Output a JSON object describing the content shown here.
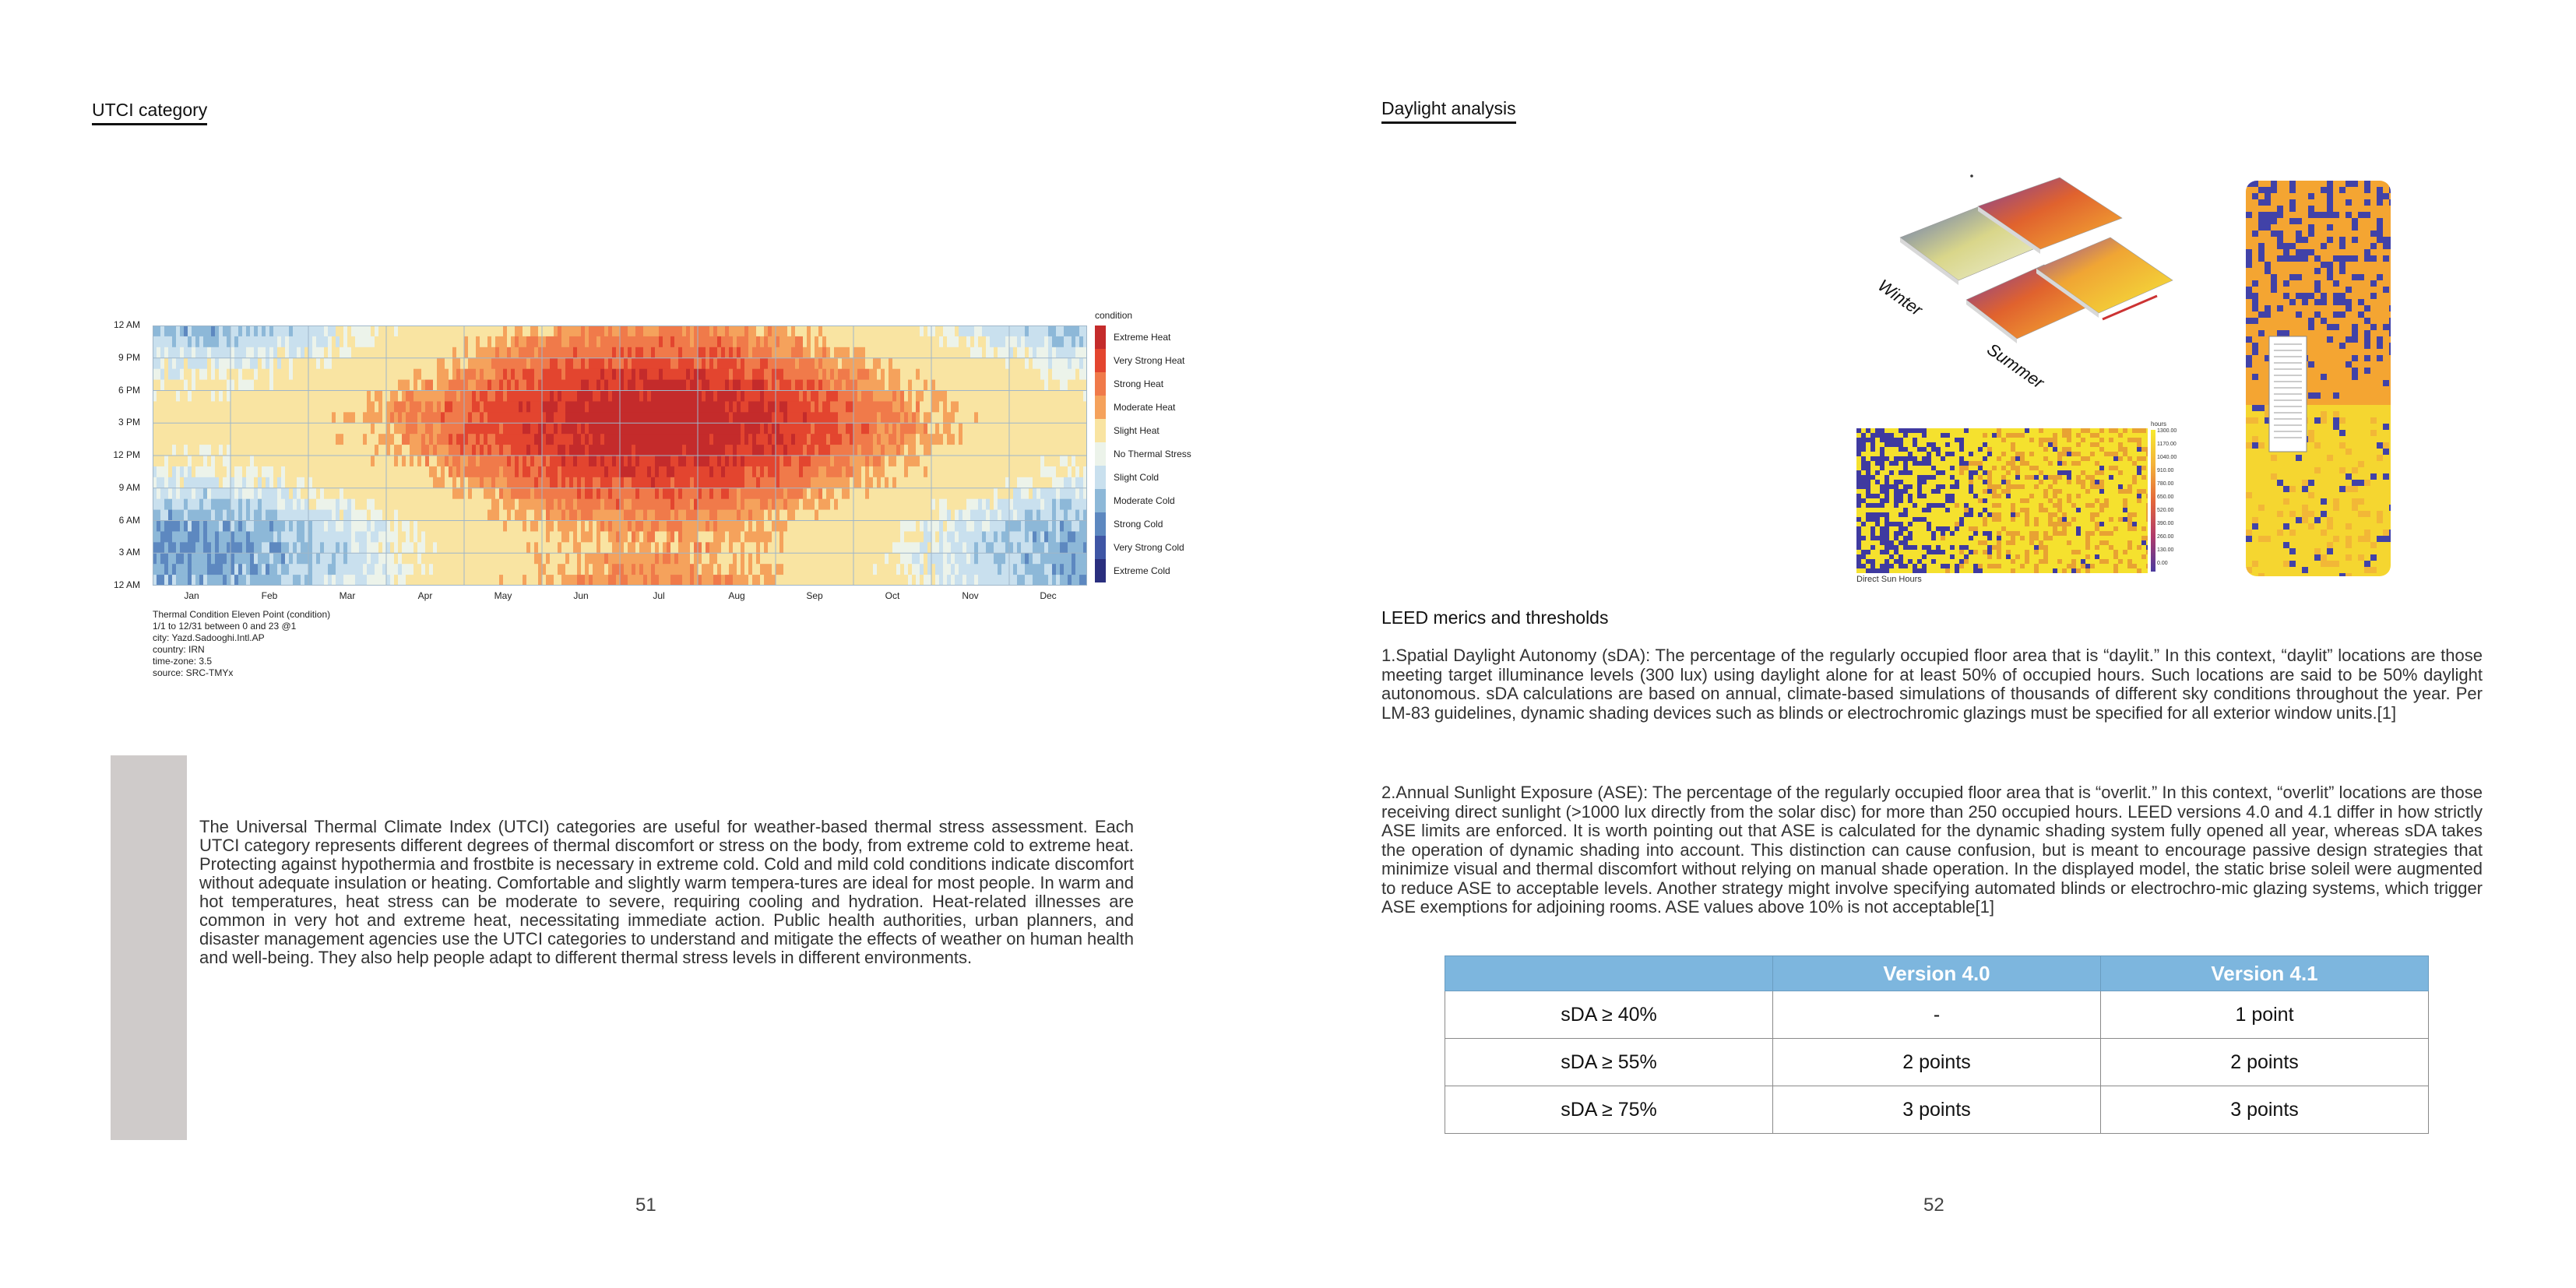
{
  "left_page": {
    "title": "UTCI category",
    "page_number": "51",
    "body": "The Universal Thermal Climate Index (UTCI) categories are useful for weather-based thermal stress assessment. Each UTCI category represents different degrees of thermal discomfort or stress on the body, from extreme cold to extreme heat. Protecting against hypothermia and frostbite is necessary in extreme cold. Cold and mild cold conditions indicate discomfort without adequate insulation or heating. Comfortable and slightly warm tempera-tures are ideal for most people. In warm and hot temperatures, heat stress can be moderate to severe, requiring cooling and hydration. Heat-related illnesses are common in very hot and extreme heat, necessitating immediate action. Public health authorities, urban planners, and disaster management agencies use the UTCI categories to understand and mitigate the effects of weather on human health and well-being. They also help people adapt to different thermal stress levels in different environments."
  },
  "chart_data": {
    "type": "heatmap",
    "title": "",
    "x_categories": [
      "Jan",
      "Feb",
      "Mar",
      "Apr",
      "May",
      "Jun",
      "Jul",
      "Aug",
      "Sep",
      "Oct",
      "Nov",
      "Dec"
    ],
    "y_ticks": [
      "12 AM",
      "9 PM",
      "6 PM",
      "3 PM",
      "12 PM",
      "9 AM",
      "6 AM",
      "3 AM",
      "12 AM"
    ],
    "legend_title": "condition",
    "legend": [
      {
        "label": "Extreme Heat",
        "color": "#c42b2b"
      },
      {
        "label": "Very Strong Heat",
        "color": "#e3452f"
      },
      {
        "label": "Strong Heat",
        "color": "#f07a4a"
      },
      {
        "label": "Moderate Heat",
        "color": "#f5a25c"
      },
      {
        "label": "Slight Heat",
        "color": "#f9e4a2"
      },
      {
        "label": "No Thermal Stress",
        "color": "#ecf3ea"
      },
      {
        "label": "Slight Cold",
        "color": "#c9e0ee"
      },
      {
        "label": "Moderate Cold",
        "color": "#8db8d8"
      },
      {
        "label": "Strong Cold",
        "color": "#5d88c0"
      },
      {
        "label": "Very Strong Cold",
        "color": "#3f56a5"
      },
      {
        "label": "Extreme Cold",
        "color": "#2a2f7e"
      }
    ],
    "legend_placement": "right",
    "grid": true,
    "metadata_lines": [
      "Thermal Condition Eleven Point (condition)",
      "1/1 to 12/31 between 0 and 23 @1",
      "city: Yazd.Sadooghi.Intl.AP",
      "country: IRN",
      "time-zone: 3.5",
      "source: SRC-TMYx"
    ]
  },
  "right_page": {
    "title": "Daylight analysis",
    "page_number": "52",
    "image_labels": {
      "winter": "Winter",
      "summer": "Summer",
      "direct_sun": "Direct Sun Hours",
      "hours": "hours"
    },
    "hours_scale": [
      "1300.00",
      "1170.00",
      "1040.00",
      "910.00",
      "780.00",
      "650.00",
      "520.00",
      "390.00",
      "260.00",
      "130.00",
      "0.00"
    ],
    "leed_heading": "LEED merics and thresholds",
    "para1": "1.Spatial Daylight Autonomy (sDA): The percentage of the regularly occupied floor area that is “daylit.” In this context, “daylit” locations are those meeting target illuminance levels (300 lux) using daylight alone for at least 50% of occupied hours. Such locations are said to be 50% daylight autonomous. sDA calculations are based on annual, climate-based simulations of thousands of different sky conditions throughout the year. Per LM-83 guidelines, dynamic shading devices such as blinds or electrochromic glazings must be specified for all exterior window units.[1]",
    "para2": "2.Annual Sunlight Exposure (ASE): The percentage of the regularly occupied floor area that is “overlit.” In this context, “overlit” locations are those receiving direct sunlight (>1000 lux directly from the solar disc) for more than 250 occupied hours. LEED versions 4.0 and 4.1 differ in how strictly ASE limits are enforced. It is worth pointing out that ASE is calculated for the dynamic shading system fully opened all year, whereas sDA takes the operation of dynamic shading into account. This distinction can cause confusion, but is meant to encourage passive design strategies that minimize visual and thermal discomfort without relying on manual shade operation. In the displayed model, the static brise soleil were augmented to reduce ASE to acceptable levels. Another strategy might involve specifying automated blinds or electrochro-mic glazing systems, which trigger ASE exemptions for adjoining rooms. ASE values above 10% is not acceptable[1]",
    "table": {
      "headers": [
        "",
        "Version 4.0",
        "Version 4.1"
      ],
      "rows": [
        [
          "sDA ≥ 40%",
          "-",
          "1 point"
        ],
        [
          "sDA ≥ 55%",
          "2 points",
          "2 points"
        ],
        [
          "sDA ≥ 75%",
          "3 points",
          "3 points"
        ]
      ]
    }
  }
}
